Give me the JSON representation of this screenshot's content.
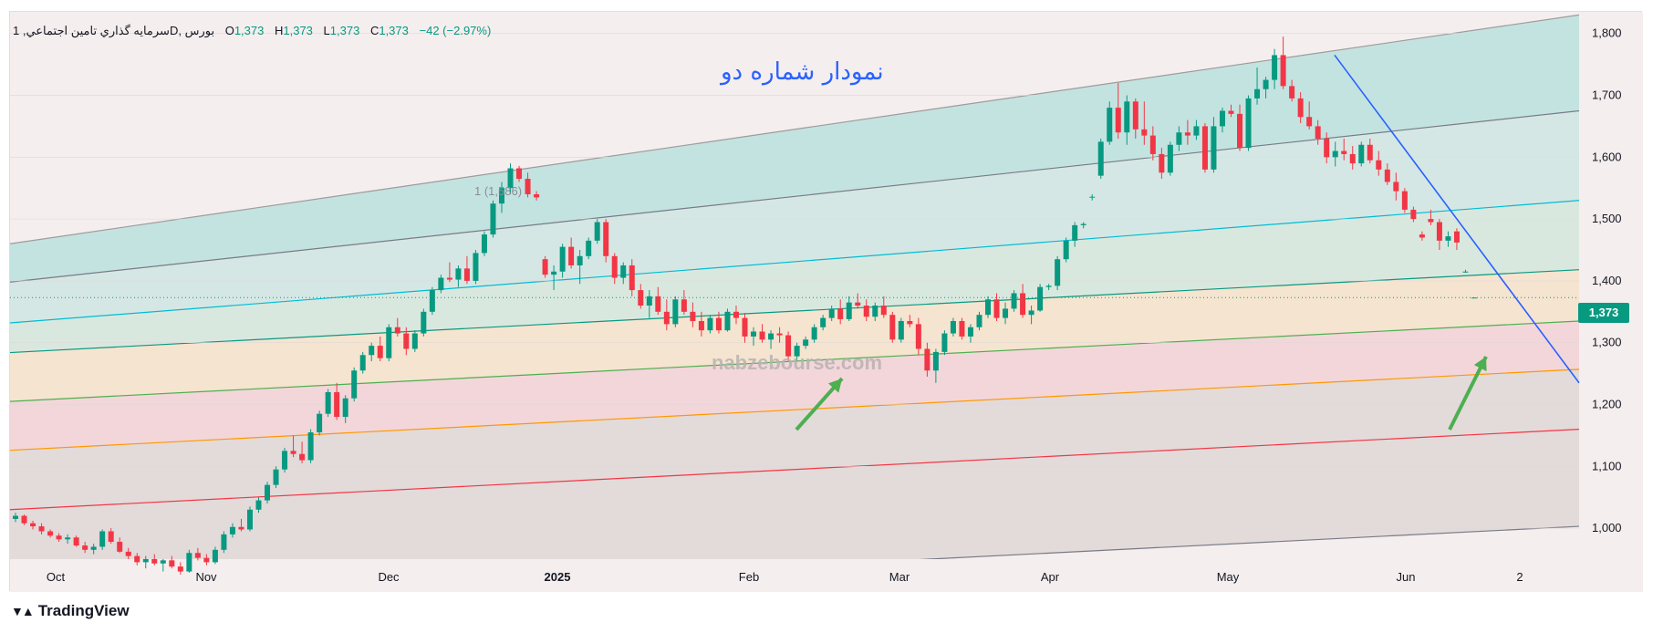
{
  "legend": {
    "symbol": "سرمايه گذاري تامين اجتماعي, 1D, بورس",
    "open_label": "O",
    "open": "1,373",
    "high_label": "H",
    "high": "1,373",
    "low_label": "L",
    "low": "1,373",
    "close_label": "C",
    "close": "1,373",
    "change": "−42 (−2.97%)"
  },
  "annotation_text": "نمودار شماره دو",
  "fib_label": "1 (1,586)",
  "watermark_text": "nabzebourse.com",
  "last_price_label": "1,373",
  "brand": "TradingView",
  "colors": {
    "up": "#089981",
    "down": "#f23645",
    "trendline": "#2962ff",
    "arrow": "#4caf50",
    "text_blue": "#2962ff"
  },
  "chart_data": {
    "type": "candlestick",
    "title": "",
    "x_ticks": [
      "Oct",
      "Nov",
      "Dec",
      "2025",
      "Feb",
      "Mar",
      "Apr",
      "May",
      "Jun",
      "2"
    ],
    "y_ticks": [
      1000,
      1100,
      1200,
      1300,
      1400,
      1500,
      1600,
      1700,
      1800
    ],
    "ylim": [
      950,
      1835
    ],
    "last_price": 1373,
    "grid": true,
    "fib_channel": {
      "levels": [
        {
          "level": "top",
          "start": 1460,
          "end": 1830,
          "color": "#d8cccc"
        },
        {
          "level": "1",
          "start": 1398,
          "end": 1675,
          "color": "#b2dfdb"
        },
        {
          "level": "0.786",
          "start": 1332,
          "end": 1530,
          "color": "#c9e4e0"
        },
        {
          "level": "0.618",
          "start": 1284,
          "end": 1418,
          "color": "#cfe6da"
        },
        {
          "level": "0.5",
          "start": 1205,
          "end": 1335,
          "color": "#f4e0c4"
        },
        {
          "level": "0.382",
          "start": 1126,
          "end": 1257,
          "color": "#f2cdd1"
        },
        {
          "level": "0",
          "start": 1030,
          "end": 1160,
          "color": "#dcd3d3"
        },
        {
          "level": "bottom",
          "start": 875,
          "end": 1003,
          "color": "#dcd3d3"
        }
      ]
    },
    "candles": [
      [
        1015,
        1025,
        1010,
        1020
      ],
      [
        1020,
        1022,
        1005,
        1008
      ],
      [
        1008,
        1012,
        998,
        1003
      ],
      [
        1003,
        1008,
        990,
        995
      ],
      [
        995,
        998,
        985,
        988
      ],
      [
        988,
        992,
        978,
        982
      ],
      [
        982,
        990,
        975,
        985
      ],
      [
        985,
        988,
        970,
        972
      ],
      [
        972,
        978,
        960,
        965
      ],
      [
        965,
        975,
        958,
        970
      ],
      [
        970,
        998,
        965,
        995
      ],
      [
        995,
        1000,
        975,
        978
      ],
      [
        978,
        985,
        960,
        962
      ],
      [
        962,
        968,
        950,
        955
      ],
      [
        955,
        960,
        940,
        945
      ],
      [
        945,
        955,
        935,
        950
      ],
      [
        950,
        958,
        940,
        943
      ],
      [
        943,
        950,
        930,
        948
      ],
      [
        948,
        955,
        935,
        938
      ],
      [
        938,
        945,
        925,
        930
      ],
      [
        930,
        965,
        928,
        960
      ],
      [
        960,
        968,
        948,
        952
      ],
      [
        952,
        958,
        940,
        945
      ],
      [
        945,
        970,
        942,
        965
      ],
      [
        965,
        995,
        960,
        990
      ],
      [
        990,
        1008,
        985,
        1002
      ],
      [
        1002,
        1015,
        995,
        998
      ],
      [
        998,
        1035,
        995,
        1030
      ],
      [
        1030,
        1050,
        1025,
        1045
      ],
      [
        1045,
        1075,
        1040,
        1070
      ],
      [
        1070,
        1100,
        1065,
        1095
      ],
      [
        1095,
        1130,
        1090,
        1125
      ],
      [
        1125,
        1150,
        1115,
        1120
      ],
      [
        1120,
        1140,
        1105,
        1110
      ],
      [
        1110,
        1160,
        1105,
        1155
      ],
      [
        1155,
        1190,
        1150,
        1185
      ],
      [
        1185,
        1225,
        1180,
        1220
      ],
      [
        1220,
        1235,
        1175,
        1180
      ],
      [
        1180,
        1215,
        1170,
        1210
      ],
      [
        1210,
        1260,
        1205,
        1255
      ],
      [
        1255,
        1285,
        1250,
        1280
      ],
      [
        1280,
        1300,
        1270,
        1295
      ],
      [
        1295,
        1310,
        1270,
        1275
      ],
      [
        1275,
        1330,
        1270,
        1325
      ],
      [
        1325,
        1340,
        1310,
        1315
      ],
      [
        1315,
        1325,
        1280,
        1290
      ],
      [
        1290,
        1320,
        1285,
        1315
      ],
      [
        1315,
        1355,
        1310,
        1350
      ],
      [
        1350,
        1390,
        1345,
        1385
      ],
      [
        1385,
        1410,
        1380,
        1405
      ],
      [
        1405,
        1430,
        1398,
        1402
      ],
      [
        1402,
        1425,
        1390,
        1420
      ],
      [
        1420,
        1440,
        1395,
        1400
      ],
      [
        1400,
        1450,
        1395,
        1445
      ],
      [
        1445,
        1480,
        1440,
        1475
      ],
      [
        1475,
        1530,
        1470,
        1525
      ],
      [
        1525,
        1560,
        1510,
        1550
      ],
      [
        1550,
        1590,
        1540,
        1582
      ],
      [
        1582,
        1586,
        1560,
        1565
      ],
      [
        1565,
        1575,
        1535,
        1540
      ],
      [
        1540,
        1545,
        1530,
        1535
      ],
      [
        1435,
        1440,
        1405,
        1410
      ],
      [
        1410,
        1425,
        1385,
        1415
      ],
      [
        1415,
        1460,
        1405,
        1455
      ],
      [
        1455,
        1470,
        1420,
        1425
      ],
      [
        1425,
        1450,
        1395,
        1440
      ],
      [
        1440,
        1470,
        1435,
        1465
      ],
      [
        1465,
        1500,
        1460,
        1495
      ],
      [
        1495,
        1500,
        1430,
        1440
      ],
      [
        1440,
        1445,
        1395,
        1405
      ],
      [
        1405,
        1430,
        1395,
        1425
      ],
      [
        1425,
        1435,
        1375,
        1385
      ],
      [
        1385,
        1395,
        1355,
        1360
      ],
      [
        1360,
        1385,
        1340,
        1375
      ],
      [
        1375,
        1390,
        1345,
        1350
      ],
      [
        1350,
        1370,
        1320,
        1330
      ],
      [
        1330,
        1375,
        1325,
        1370
      ],
      [
        1370,
        1385,
        1345,
        1350
      ],
      [
        1350,
        1365,
        1325,
        1335
      ],
      [
        1335,
        1350,
        1310,
        1320
      ],
      [
        1320,
        1345,
        1315,
        1340
      ],
      [
        1340,
        1350,
        1315,
        1320
      ],
      [
        1320,
        1355,
        1318,
        1350
      ],
      [
        1350,
        1360,
        1330,
        1340
      ],
      [
        1340,
        1348,
        1300,
        1310
      ],
      [
        1310,
        1325,
        1295,
        1318
      ],
      [
        1318,
        1330,
        1300,
        1305
      ],
      [
        1305,
        1320,
        1290,
        1315
      ],
      [
        1315,
        1325,
        1300,
        1312
      ],
      [
        1312,
        1318,
        1270,
        1278
      ],
      [
        1278,
        1300,
        1270,
        1295
      ],
      [
        1295,
        1310,
        1290,
        1305
      ],
      [
        1305,
        1330,
        1300,
        1325
      ],
      [
        1325,
        1345,
        1320,
        1340
      ],
      [
        1340,
        1360,
        1335,
        1355
      ],
      [
        1355,
        1370,
        1330,
        1338
      ],
      [
        1338,
        1375,
        1335,
        1365
      ],
      [
        1365,
        1380,
        1355,
        1360
      ],
      [
        1360,
        1370,
        1335,
        1342
      ],
      [
        1342,
        1365,
        1335,
        1360
      ],
      [
        1360,
        1375,
        1340,
        1345
      ],
      [
        1345,
        1350,
        1300,
        1305
      ],
      [
        1305,
        1340,
        1300,
        1335
      ],
      [
        1335,
        1345,
        1325,
        1330
      ],
      [
        1330,
        1340,
        1280,
        1290
      ],
      [
        1290,
        1300,
        1245,
        1255
      ],
      [
        1255,
        1290,
        1235,
        1285
      ],
      [
        1285,
        1320,
        1280,
        1315
      ],
      [
        1315,
        1340,
        1310,
        1335
      ],
      [
        1335,
        1340,
        1305,
        1310
      ],
      [
        1310,
        1330,
        1300,
        1325
      ],
      [
        1325,
        1350,
        1320,
        1345
      ],
      [
        1345,
        1375,
        1340,
        1370
      ],
      [
        1370,
        1380,
        1335,
        1340
      ],
      [
        1340,
        1365,
        1330,
        1355
      ],
      [
        1355,
        1385,
        1350,
        1380
      ],
      [
        1380,
        1395,
        1340,
        1345
      ],
      [
        1345,
        1360,
        1330,
        1352
      ],
      [
        1352,
        1395,
        1350,
        1390
      ],
      [
        1390,
        1395,
        1385,
        1392
      ],
      [
        1392,
        1440,
        1385,
        1435
      ],
      [
        1435,
        1470,
        1430,
        1465
      ],
      [
        1465,
        1495,
        1455,
        1490
      ],
      [
        1490,
        1495,
        1485,
        1492
      ],
      [
        1535,
        1540,
        1530,
        1536
      ],
      [
        1570,
        1630,
        1565,
        1625
      ],
      [
        1625,
        1690,
        1620,
        1680
      ],
      [
        1680,
        1720,
        1630,
        1640
      ],
      [
        1640,
        1700,
        1620,
        1690
      ],
      [
        1690,
        1695,
        1630,
        1645
      ],
      [
        1645,
        1690,
        1620,
        1635
      ],
      [
        1635,
        1650,
        1595,
        1605
      ],
      [
        1605,
        1615,
        1565,
        1575
      ],
      [
        1575,
        1625,
        1570,
        1620
      ],
      [
        1620,
        1650,
        1610,
        1640
      ],
      [
        1640,
        1660,
        1620,
        1635
      ],
      [
        1635,
        1660,
        1628,
        1650
      ],
      [
        1650,
        1655,
        1575,
        1580
      ],
      [
        1580,
        1665,
        1575,
        1650
      ],
      [
        1650,
        1680,
        1640,
        1675
      ],
      [
        1675,
        1685,
        1665,
        1670
      ],
      [
        1670,
        1685,
        1610,
        1615
      ],
      [
        1615,
        1700,
        1610,
        1695
      ],
      [
        1695,
        1745,
        1685,
        1710
      ],
      [
        1710,
        1730,
        1695,
        1725
      ],
      [
        1725,
        1775,
        1710,
        1765
      ],
      [
        1765,
        1795,
        1710,
        1715
      ],
      [
        1715,
        1725,
        1690,
        1695
      ],
      [
        1695,
        1705,
        1655,
        1665
      ],
      [
        1665,
        1690,
        1645,
        1650
      ],
      [
        1650,
        1660,
        1620,
        1630
      ],
      [
        1630,
        1640,
        1590,
        1600
      ],
      [
        1600,
        1625,
        1585,
        1610
      ],
      [
        1610,
        1630,
        1595,
        1605
      ],
      [
        1605,
        1618,
        1580,
        1590
      ],
      [
        1590,
        1625,
        1585,
        1620
      ],
      [
        1620,
        1630,
        1590,
        1595
      ],
      [
        1595,
        1610,
        1570,
        1580
      ],
      [
        1580,
        1590,
        1555,
        1560
      ],
      [
        1560,
        1575,
        1530,
        1545
      ],
      [
        1545,
        1550,
        1510,
        1515
      ],
      [
        1515,
        1520,
        1495,
        1500
      ],
      [
        1475,
        1480,
        1465,
        1470
      ],
      [
        1500,
        1515,
        1490,
        1495
      ],
      [
        1495,
        1500,
        1450,
        1465
      ],
      [
        1465,
        1480,
        1455,
        1472
      ],
      [
        1480,
        1485,
        1450,
        1462
      ],
      [
        1415,
        1418,
        1413,
        1415
      ],
      [
        1373,
        1373,
        1373,
        1373
      ]
    ],
    "trendline": {
      "from": [
        1765,
        "May 20"
      ],
      "to": [
        1235,
        "Jun 30"
      ]
    },
    "arrows": [
      {
        "near": "Feb 25"
      },
      {
        "near": "Jun 22"
      }
    ]
  }
}
